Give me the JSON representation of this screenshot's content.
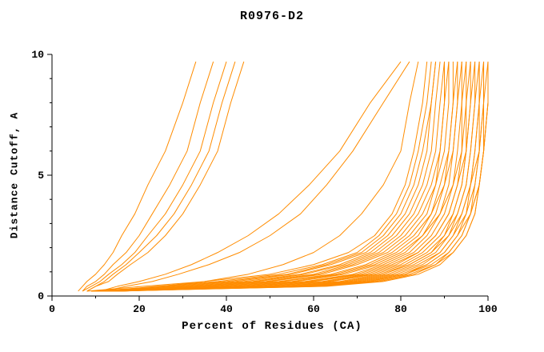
{
  "title": "R0976-D2",
  "axis_color": "#000000",
  "chart_data": {
    "type": "line",
    "title": "R0976-D2",
    "xlabel": "Percent of Residues (CA)",
    "ylabel": "Distance Cutoff, A",
    "xlim": [
      0,
      100
    ],
    "ylim": [
      0,
      10
    ],
    "x_ticks": [
      0,
      20,
      40,
      60,
      80,
      100
    ],
    "y_ticks": [
      0,
      5,
      10
    ],
    "x_minor_ticks": [
      10,
      30,
      50,
      70,
      90
    ],
    "y_minor_ticks": [
      1,
      2,
      3,
      4,
      6,
      7,
      8,
      9
    ],
    "grid": false,
    "legend": "none",
    "line_color": "#FF8C00",
    "y_levels": [
      0.2,
      0.4,
      0.6,
      0.9,
      1.3,
      1.8,
      2.5,
      3.4,
      4.6,
      6.0,
      8.0,
      9.7
    ],
    "series": [
      {
        "x": [
          6,
          7,
          8,
          10,
          12,
          14,
          16,
          19,
          22,
          26,
          30,
          33
        ]
      },
      {
        "x": [
          7,
          8,
          10,
          12,
          14,
          17,
          20,
          23,
          27,
          31,
          34,
          37
        ]
      },
      {
        "x": [
          7,
          9,
          11,
          13,
          16,
          19,
          22,
          26,
          30,
          34,
          37,
          40
        ]
      },
      {
        "x": [
          8,
          10,
          12,
          14,
          17,
          20,
          24,
          28,
          32,
          36,
          39,
          42
        ]
      },
      {
        "x": [
          8,
          10,
          13,
          15,
          18,
          22,
          26,
          30,
          34,
          38,
          41,
          44
        ]
      },
      {
        "x": [
          11,
          15,
          20,
          26,
          32,
          38,
          45,
          52,
          59,
          66,
          73,
          80
        ]
      },
      {
        "x": [
          12,
          17,
          23,
          29,
          36,
          43,
          50,
          57,
          63,
          69,
          76,
          82
        ]
      },
      {
        "x": [
          14,
          25,
          35,
          45,
          53,
          60,
          66,
          71,
          76,
          80,
          82,
          84
        ]
      },
      {
        "x": [
          8,
          21,
          35,
          50,
          60,
          68,
          74,
          78,
          81,
          83,
          85,
          86
        ]
      },
      {
        "x": [
          12,
          24,
          38,
          52,
          62,
          70,
          75,
          79,
          82,
          84,
          86,
          87
        ]
      },
      {
        "x": [
          9,
          26,
          40,
          54,
          63,
          71,
          76,
          80,
          83,
          85,
          87,
          88
        ]
      },
      {
        "x": [
          14,
          28,
          42,
          55,
          64,
          72,
          77,
          81,
          84,
          86,
          87,
          88
        ]
      },
      {
        "x": [
          10,
          30,
          44,
          57,
          66,
          73,
          78,
          82,
          85,
          87,
          88,
          89
        ]
      },
      {
        "x": [
          15,
          32,
          46,
          58,
          67,
          74,
          79,
          83,
          86,
          88,
          89,
          90
        ]
      },
      {
        "x": [
          11,
          33,
          47,
          60,
          68,
          75,
          80,
          84,
          87,
          89,
          90,
          90
        ]
      },
      {
        "x": [
          13,
          35,
          49,
          61,
          69,
          76,
          81,
          85,
          88,
          89,
          90,
          91
        ]
      },
      {
        "x": [
          9,
          36,
          50,
          62,
          70,
          77,
          82,
          86,
          88,
          90,
          91,
          91
        ]
      },
      {
        "x": [
          16,
          38,
          52,
          64,
          72,
          78,
          83,
          87,
          89,
          91,
          92,
          92
        ]
      },
      {
        "x": [
          10,
          39,
          53,
          65,
          73,
          79,
          84,
          87,
          90,
          91,
          92,
          93
        ]
      },
      {
        "x": [
          12,
          41,
          55,
          66,
          74,
          80,
          85,
          88,
          90,
          92,
          93,
          93
        ]
      },
      {
        "x": [
          14,
          42,
          56,
          67,
          75,
          81,
          85,
          89,
          91,
          92,
          93,
          94
        ]
      },
      {
        "x": [
          11,
          44,
          58,
          69,
          76,
          82,
          86,
          89,
          92,
          93,
          94,
          94
        ]
      },
      {
        "x": [
          13,
          45,
          59,
          70,
          77,
          83,
          87,
          90,
          92,
          94,
          94,
          95
        ]
      },
      {
        "x": [
          9,
          46,
          60,
          71,
          78,
          84,
          88,
          91,
          93,
          94,
          95,
          95
        ]
      },
      {
        "x": [
          15,
          48,
          62,
          72,
          79,
          84,
          88,
          91,
          93,
          95,
          95,
          96
        ]
      },
      {
        "x": [
          12,
          49,
          63,
          73,
          80,
          85,
          89,
          92,
          94,
          95,
          96,
          96
        ]
      },
      {
        "x": [
          10,
          50,
          64,
          74,
          81,
          86,
          90,
          92,
          94,
          95,
          96,
          97
        ]
      },
      {
        "x": [
          14,
          52,
          66,
          75,
          82,
          87,
          90,
          93,
          95,
          96,
          97,
          97
        ]
      },
      {
        "x": [
          11,
          53,
          67,
          76,
          82,
          87,
          91,
          93,
          95,
          96,
          97,
          98
        ]
      },
      {
        "x": [
          13,
          54,
          68,
          77,
          83,
          88,
          91,
          94,
          96,
          97,
          98,
          98
        ]
      },
      {
        "x": [
          9,
          56,
          69,
          78,
          84,
          89,
          92,
          94,
          96,
          97,
          98,
          98
        ]
      },
      {
        "x": [
          15,
          57,
          70,
          79,
          85,
          89,
          92,
          95,
          96,
          98,
          98,
          99
        ]
      },
      {
        "x": [
          12,
          58,
          71,
          80,
          86,
          90,
          93,
          95,
          97,
          98,
          99,
          99
        ]
      },
      {
        "x": [
          10,
          59,
          72,
          81,
          86,
          90,
          93,
          96,
          97,
          98,
          99,
          99
        ]
      },
      {
        "x": [
          13,
          60,
          73,
          81,
          87,
          91,
          94,
          96,
          98,
          99,
          99,
          100
        ]
      },
      {
        "x": [
          11,
          61,
          74,
          82,
          88,
          91,
          94,
          96,
          98,
          99,
          100,
          100
        ]
      },
      {
        "x": [
          14,
          62,
          75,
          83,
          88,
          92,
          95,
          97,
          98,
          99,
          100,
          100
        ]
      },
      {
        "x": [
          12,
          63,
          76,
          84,
          89,
          92,
          95,
          97,
          98,
          99,
          100,
          100
        ]
      }
    ]
  }
}
